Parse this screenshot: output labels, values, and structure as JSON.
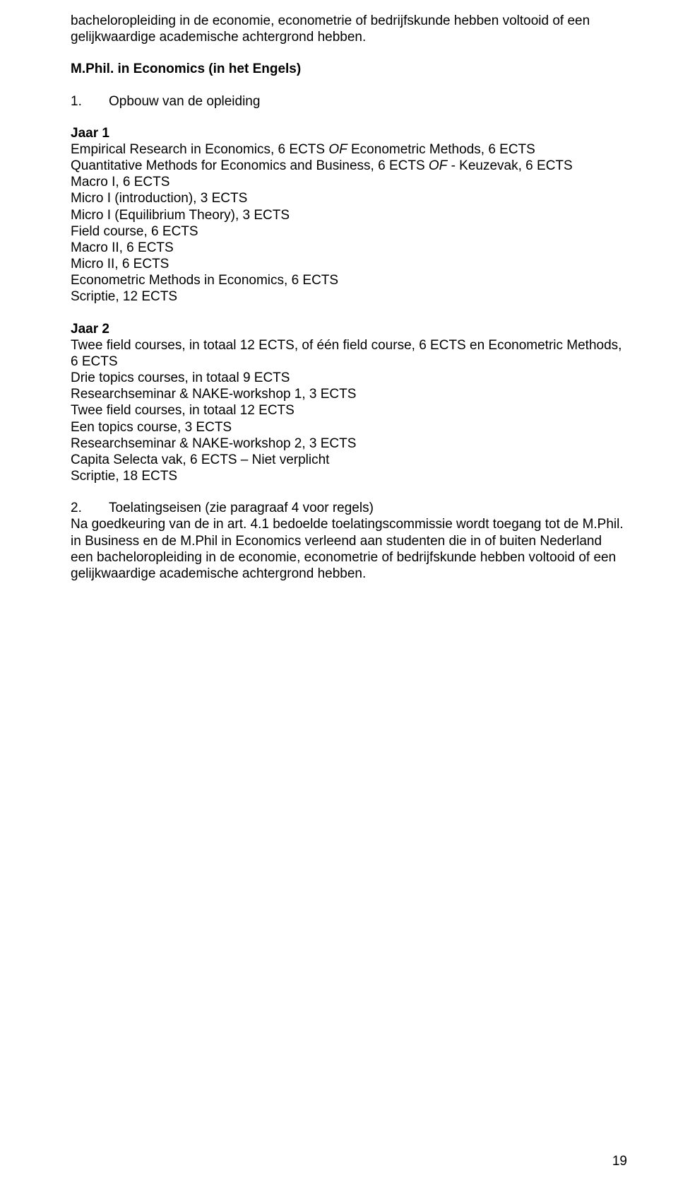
{
  "intro": {
    "line1": "bacheloropleiding in de economie, econometrie of bedrijfskunde hebben voltooid of een",
    "line2": "gelijkwaardige academische achtergrond hebben."
  },
  "heading_mphil": "M.Phil. in Economics (in het Engels)",
  "opbouw": {
    "num": "1.",
    "label": "Opbouw van de opleiding"
  },
  "jaar1": {
    "title": "Jaar 1",
    "l1a": "Empirical Research in Economics, 6 ECTS ",
    "l1b": "OF",
    "l1c": " Econometric Methods, 6 ECTS",
    "l2a": "Quantitative Methods for Economics and Business, 6 ECTS ",
    "l2b": "OF",
    "l2c": " - Keuzevak, 6 ECTS",
    "l3": "Macro I, 6 ECTS",
    "l4": "Micro I (introduction), 3 ECTS",
    "l5": "Micro I (Equilibrium Theory), 3 ECTS",
    "l6": "Field course, 6 ECTS",
    "l7": "Macro II, 6 ECTS",
    "l8": "Micro II, 6 ECTS",
    "l9": "Econometric Methods in Economics, 6 ECTS",
    "l10": "Scriptie, 12 ECTS"
  },
  "jaar2": {
    "title": "Jaar 2",
    "l1": "Twee field courses, in totaal 12 ECTS, of één field course, 6 ECTS en Econometric Methods, 6 ECTS",
    "l2": "Drie topics courses, in totaal 9 ECTS",
    "l3": "Researchseminar & NAKE-workshop 1, 3 ECTS",
    "l4": "Twee field courses, in totaal 12 ECTS",
    "l5": "Een topics course, 3 ECTS",
    "l6": "Researchseminar & NAKE-workshop 2, 3 ECTS",
    "l7": "Capita Selecta vak, 6 ECTS – Niet verplicht",
    "l8": "Scriptie, 18 ECTS"
  },
  "toelating": {
    "num": "2.",
    "label": "Toelatingseisen (zie paragraaf 4 voor regels)",
    "body": "Na goedkeuring van de in art. 4.1 bedoelde toelatingscommissie wordt toegang tot de M.Phil. in Business en de M.Phil in Economics verleend aan studenten die in of buiten Nederland een bacheloropleiding in de economie, econometrie of bedrijfskunde hebben voltooid of een gelijkwaardige academische achtergrond hebben."
  },
  "page_number": "19"
}
